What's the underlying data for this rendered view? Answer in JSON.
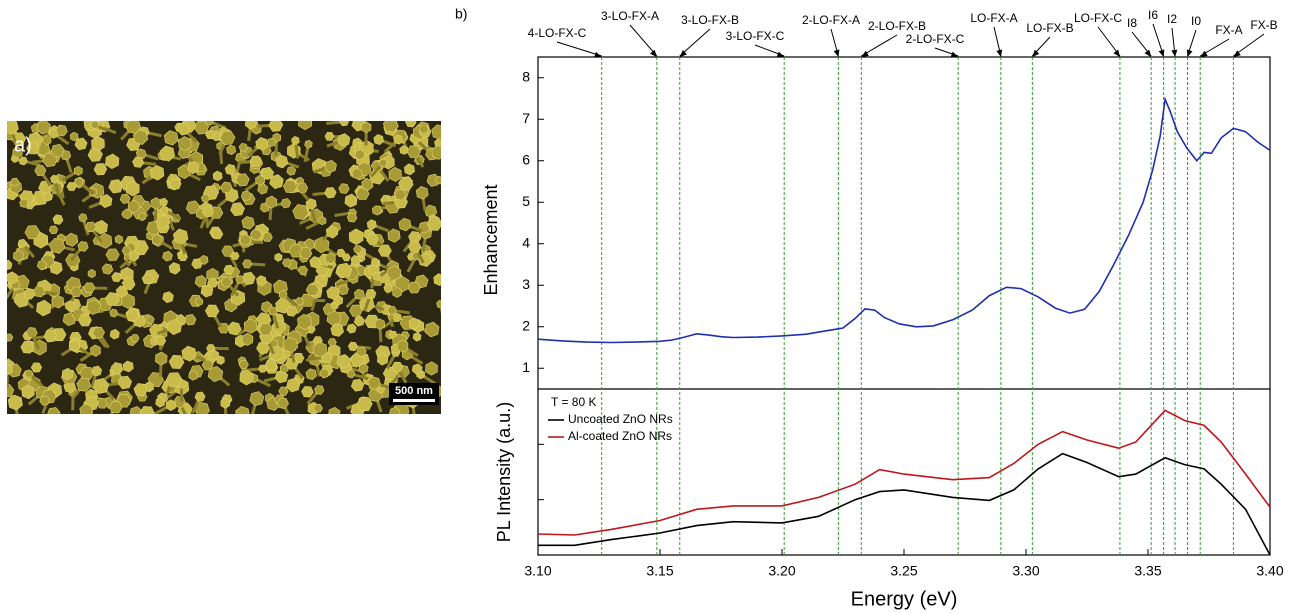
{
  "panel_a": {
    "label": "a)",
    "scale_bar": "500 nm"
  },
  "chart_data": [
    {
      "type": "line",
      "panel_label": "b)",
      "ylabel": "Enhancement",
      "xlim": [
        3.1,
        3.4
      ],
      "ylim": [
        0.5,
        8.5
      ],
      "yticks": [
        1,
        2,
        3,
        4,
        5,
        6,
        7,
        8
      ],
      "x": [
        3.1,
        3.11,
        3.12,
        3.13,
        3.14,
        3.15,
        3.155,
        3.16,
        3.165,
        3.17,
        3.175,
        3.18,
        3.19,
        3.2,
        3.21,
        3.215,
        3.22,
        3.225,
        3.23,
        3.234,
        3.238,
        3.242,
        3.248,
        3.255,
        3.262,
        3.27,
        3.278,
        3.285,
        3.292,
        3.298,
        3.305,
        3.312,
        3.318,
        3.324,
        3.33,
        3.336,
        3.342,
        3.348,
        3.352,
        3.355,
        3.357,
        3.359,
        3.362,
        3.366,
        3.37,
        3.373,
        3.376,
        3.38,
        3.385,
        3.39,
        3.395,
        3.4
      ],
      "series": [
        {
          "color": "#1f2fb0",
          "values": [
            1.7,
            1.66,
            1.63,
            1.62,
            1.63,
            1.65,
            1.68,
            1.75,
            1.83,
            1.8,
            1.76,
            1.74,
            1.75,
            1.78,
            1.82,
            1.87,
            1.92,
            1.97,
            2.2,
            2.43,
            2.4,
            2.22,
            2.07,
            2.0,
            2.02,
            2.17,
            2.4,
            2.75,
            2.95,
            2.92,
            2.72,
            2.45,
            2.33,
            2.42,
            2.85,
            3.5,
            4.2,
            5.0,
            5.8,
            6.6,
            7.48,
            7.2,
            6.7,
            6.3,
            6.0,
            6.2,
            6.18,
            6.55,
            6.78,
            6.7,
            6.45,
            6.25
          ]
        }
      ],
      "line_color": "#2ca02c",
      "annotations": [
        {
          "x": 3.1261,
          "label": "4-LO-FX-C"
        },
        {
          "x": 3.1487,
          "label": "3-LO-FX-A"
        },
        {
          "x": 3.1581,
          "label": "3-LO-FX-B"
        },
        {
          "x": 3.2009,
          "label": "3-LO-FX-C"
        },
        {
          "x": 3.2231,
          "label": "2-LO-FX-A"
        },
        {
          "x": 3.2325,
          "label": "2-LO-FX-B"
        },
        {
          "x": 3.2722,
          "label": "2-LO-FX-C"
        },
        {
          "x": 3.2897,
          "label": "LO-FX-A"
        },
        {
          "x": 3.3026,
          "label": "LO-FX-B"
        },
        {
          "x": 3.3385,
          "label": "LO-FX-C"
        },
        {
          "x": 3.3513,
          "label": "I8"
        },
        {
          "x": 3.3564,
          "label": "I6"
        },
        {
          "x": 3.3611,
          "label": "I2"
        },
        {
          "x": 3.3662,
          "label": "I0"
        },
        {
          "x": 3.3714,
          "label": "FX-A"
        },
        {
          "x": 3.385,
          "label": "FX-B"
        }
      ]
    },
    {
      "type": "line",
      "ylabel": "PL Intensity (a.u.)",
      "xlabel": "Energy (eV)",
      "log_scale_y": true,
      "ytick_labels": false,
      "legend": "upper left",
      "annotation": "T = 80 K",
      "xlim": [
        3.1,
        3.4
      ],
      "ylim": [
        1,
        1000
      ],
      "yticks": [
        10,
        100
      ],
      "xticks": [
        {
          "value": 3.1,
          "label": "3.10"
        },
        {
          "value": 3.15,
          "label": "3.15"
        },
        {
          "value": 3.2,
          "label": "3.20"
        },
        {
          "value": 3.25,
          "label": "3.25"
        },
        {
          "value": 3.3,
          "label": "3.30"
        },
        {
          "value": 3.35,
          "label": "3.35"
        },
        {
          "value": 3.4,
          "label": "3.40"
        }
      ],
      "x": [
        3.1,
        3.115,
        3.13,
        3.15,
        3.165,
        3.18,
        3.2,
        3.215,
        3.23,
        3.24,
        3.25,
        3.27,
        3.285,
        3.295,
        3.305,
        3.315,
        3.325,
        3.338,
        3.345,
        3.357,
        3.365,
        3.373,
        3.38,
        3.39,
        3.4
      ],
      "series": [
        {
          "name": "Uncoated ZnO NRs",
          "color": "#000000",
          "values": [
            1.5,
            1.5,
            1.9,
            2.5,
            3.4,
            4.0,
            3.8,
            5.0,
            10,
            14,
            15,
            11,
            9.7,
            15,
            36,
            68,
            47,
            26,
            29,
            57,
            43,
            36,
            19,
            6.7,
            1.0
          ]
        },
        {
          "name": "Al-coated ZnO NRs",
          "color": "#c0161b",
          "values": [
            2.4,
            2.3,
            2.9,
            4.2,
            6.7,
            7.7,
            7.7,
            11,
            19,
            35,
            29,
            23,
            25,
            45,
            100,
            170,
            120,
            85,
            110,
            410,
            270,
            220,
            110,
            29,
            7.3
          ]
        }
      ]
    }
  ]
}
